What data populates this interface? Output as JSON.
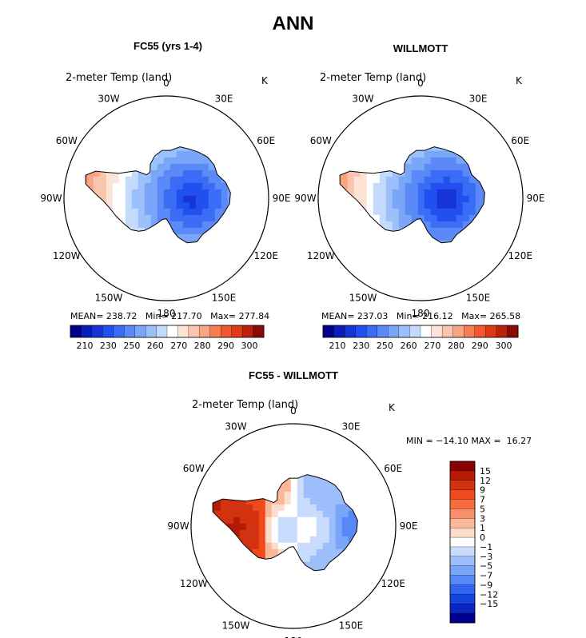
{
  "title": "ANN",
  "panel_left": {
    "title": "FC55 (yrs 1-4)",
    "variable": "2-meter Temp (land)",
    "units": "K",
    "stats": {
      "mean_label": "MEAN=",
      "mean": "238.72",
      "min_label": "Min=",
      "min": "217.70",
      "max_label": "Max=",
      "max": "277.84"
    }
  },
  "panel_right": {
    "title": "WILLMOTT",
    "variable": "2-meter Temp (land)",
    "units": "K",
    "stats": {
      "mean_label": "MEAN=",
      "mean": "237.03",
      "min_label": "Min=",
      "min": "216.12",
      "max_label": "Max=",
      "max": "265.58"
    }
  },
  "panel_diff": {
    "title": "FC55 - WILLMOTT",
    "variable": "2-meter Temp (land)",
    "units": "K",
    "minmax": "MIN = −14.10 MAX =  16.27"
  },
  "lon_labels": [
    "0",
    "30E",
    "60E",
    "90E",
    "120E",
    "150E",
    "180",
    "150W",
    "120W",
    "90W",
    "60W",
    "30W"
  ],
  "temp_colorbar": {
    "labels": [
      "210",
      "230",
      "250",
      "260",
      "270",
      "280",
      "290",
      "300"
    ],
    "colors": [
      "#00008b",
      "#0b1db6",
      "#1634d8",
      "#2250f0",
      "#3a6cf5",
      "#5b8af8",
      "#7aa6fa",
      "#9cc0fb",
      "#c4dafd",
      "#ffffff",
      "#fde3d6",
      "#fac5ad",
      "#f8a584",
      "#f67e55",
      "#f2572f",
      "#dd3a18",
      "#b9230d",
      "#8a0c04"
    ]
  },
  "diff_colorbar": {
    "labels": [
      "15",
      "12",
      "9",
      "7",
      "5",
      "3",
      "1",
      "0",
      "−1",
      "−3",
      "−5",
      "−7",
      "−9",
      "−12",
      "−15"
    ],
    "colors": [
      "#8b0000",
      "#b41a05",
      "#d23210",
      "#ee4a1c",
      "#f76b3d",
      "#f98f68",
      "#fbb798",
      "#fdddc9",
      "#ffffff",
      "#c9dcfd",
      "#9cbffb",
      "#7aa5fa",
      "#5688f7",
      "#2f65f2",
      "#1643e0",
      "#0a25c0",
      "#00008f"
    ]
  }
}
